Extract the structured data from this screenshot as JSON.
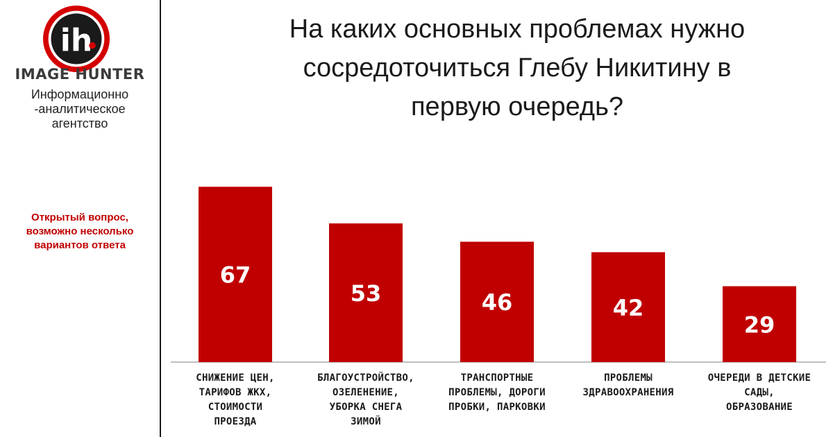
{
  "sidebar": {
    "brand": "IMAGE HUNTER",
    "agency_lines": [
      "Информационно",
      "-аналитическое",
      "агентство"
    ],
    "note_lines": [
      "Открытый вопрос,",
      "возможно несколько",
      "вариантов ответа"
    ]
  },
  "title_lines": [
    "На каких основных проблемах нужно",
    "сосредоточиться Глебу Никитину в",
    "первую очередь?"
  ],
  "colors": {
    "bar": "#c00000",
    "accent": "#c00000",
    "text": "#1a1a1a"
  },
  "chart_data": {
    "type": "bar",
    "categories": [
      "СНИЖЕНИЕ ЦЕН, ТАРИФОВ ЖКХ, СТОИМОСТИ ПРОЕЗДА",
      "БЛАГОУСТРОЙСТВО, ОЗЕЛЕНЕНИЕ, УБОРКА СНЕГА ЗИМОЙ",
      "ТРАНСПОРТНЫЕ ПРОБЛЕМЫ, ДОРОГИ ПРОБКИ, ПАРКОВКИ",
      "ПРОБЛЕМЫ ЗДРАВООХРАНЕНИЯ",
      "ОЧЕРЕДИ В ДЕТСКИЕ САДЫ, ОБРАЗОВАНИЕ"
    ],
    "category_label_lines": [
      [
        "СНИЖЕНИЕ ЦЕН,",
        "ТАРИФОВ ЖКХ,",
        "СТОИМОСТИ",
        "ПРОЕЗДА"
      ],
      [
        "БЛАГОУСТРОЙСТВО,",
        "ОЗЕЛЕНЕНИЕ,",
        "УБОРКА СНЕГА",
        "ЗИМОЙ"
      ],
      [
        "ТРАНСПОРТНЫЕ",
        "ПРОБЛЕМЫ, ДОРОГИ",
        "ПРОБКИ, ПАРКОВКИ"
      ],
      [
        "ПРОБЛЕМЫ",
        "ЗДРАВООХРАНЕНИЯ"
      ],
      [
        "ОЧЕРЕДИ В ДЕТСКИЕ",
        "САДЫ,",
        "ОБРАЗОВАНИЕ"
      ]
    ],
    "values": [
      67,
      53,
      46,
      42,
      29
    ],
    "ylim": [
      0,
      70
    ],
    "grid": false,
    "legend": "none"
  }
}
